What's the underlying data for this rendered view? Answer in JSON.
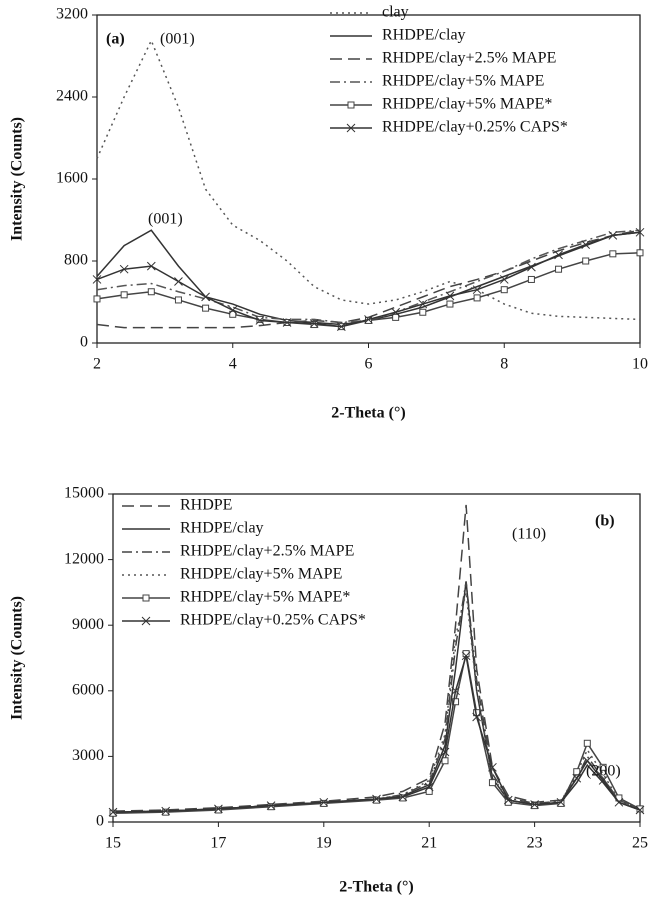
{
  "chart_data": [
    {
      "type": "line",
      "panel": "(a)",
      "annotations": [
        "(001)",
        "(001)"
      ],
      "xlabel": "2-Theta (°)",
      "ylabel": "Intensity (Counts)",
      "x": [
        2,
        2.4,
        2.8,
        3.2,
        3.6,
        4,
        4.4,
        4.8,
        5.2,
        5.6,
        6,
        6.4,
        6.8,
        7.2,
        7.6,
        8,
        8.4,
        8.8,
        9.2,
        9.6,
        10
      ],
      "xlim": [
        2,
        10
      ],
      "xticks": [
        2,
        4,
        6,
        8,
        10
      ],
      "ylim": [
        0,
        3200
      ],
      "yticks": [
        0,
        800,
        1600,
        2400,
        3200
      ],
      "grid": false,
      "legend": "upper-right",
      "series": [
        {
          "name": "clay",
          "color": "#555555",
          "dash": "dotted",
          "marker": "none",
          "values": [
            1800,
            2400,
            2950,
            2300,
            1500,
            1150,
            1000,
            800,
            550,
            420,
            380,
            420,
            500,
            600,
            520,
            380,
            290,
            260,
            250,
            240,
            230
          ]
        },
        {
          "name": "RHDPE/clay",
          "color": "#333333",
          "dash": "solid",
          "marker": "none",
          "values": [
            650,
            950,
            1100,
            750,
            450,
            380,
            280,
            220,
            200,
            180,
            220,
            280,
            350,
            450,
            550,
            650,
            750,
            850,
            950,
            1050,
            1080
          ]
        },
        {
          "name": "RHDPE/clay+2.5% MAPE",
          "color": "#444444",
          "dash": "longdash",
          "marker": "none",
          "values": [
            180,
            150,
            150,
            150,
            150,
            150,
            170,
            200,
            220,
            200,
            250,
            350,
            450,
            550,
            620,
            700,
            800,
            900,
            980,
            1050,
            1100
          ]
        },
        {
          "name": "RHDPE/clay+5% MAPE",
          "color": "#555555",
          "dash": "dashdot",
          "marker": "none",
          "values": [
            520,
            560,
            580,
            500,
            430,
            350,
            250,
            230,
            230,
            200,
            220,
            300,
            400,
            500,
            600,
            700,
            820,
            920,
            1000,
            1080,
            1100
          ]
        },
        {
          "name": "RHDPE/clay+5% MAPE*",
          "color": "#444444",
          "dash": "solid",
          "marker": "square",
          "values": [
            430,
            470,
            500,
            420,
            340,
            280,
            230,
            200,
            180,
            160,
            220,
            250,
            300,
            380,
            440,
            520,
            620,
            720,
            800,
            870,
            880
          ]
        },
        {
          "name": "RHDPE/clay+0.25% CAPS*",
          "color": "#333333",
          "dash": "solid",
          "marker": "x",
          "values": [
            620,
            720,
            750,
            600,
            450,
            320,
            220,
            200,
            190,
            160,
            230,
            300,
            380,
            460,
            520,
            620,
            740,
            860,
            960,
            1050,
            1080
          ]
        }
      ]
    },
    {
      "type": "line",
      "panel": "(b)",
      "annotations": [
        "(110)",
        "(200)"
      ],
      "xlabel": "2-Theta (°)",
      "ylabel": "Intensity (Counts)",
      "x": [
        15,
        16,
        17,
        18,
        19,
        20,
        20.5,
        21,
        21.3,
        21.5,
        21.7,
        21.9,
        22.2,
        22.5,
        23,
        23.5,
        23.8,
        24,
        24.3,
        24.6,
        25
      ],
      "xlim": [
        15,
        25
      ],
      "xticks": [
        15,
        17,
        19,
        21,
        23,
        25
      ],
      "ylim": [
        0,
        15000
      ],
      "yticks": [
        0,
        3000,
        6000,
        9000,
        12000,
        15000
      ],
      "grid": false,
      "legend": "upper-left",
      "series": [
        {
          "name": "RHDPE",
          "color": "#444444",
          "dash": "longdash",
          "marker": "none",
          "values": [
            500,
            550,
            650,
            800,
            950,
            1150,
            1400,
            2000,
            4500,
            9000,
            14500,
            7000,
            2500,
            1200,
            900,
            1000,
            2000,
            2800,
            2000,
            1000,
            600
          ]
        },
        {
          "name": "RHDPE/clay",
          "color": "#333333",
          "dash": "solid",
          "marker": "none",
          "values": [
            450,
            500,
            600,
            750,
            900,
            1050,
            1200,
            1700,
            3500,
            7000,
            11000,
            6000,
            2000,
            1000,
            800,
            900,
            1800,
            2600,
            1800,
            900,
            550
          ]
        },
        {
          "name": "RHDPE/clay+2.5% MAPE",
          "color": "#444444",
          "dash": "dashdot",
          "marker": "none",
          "values": [
            450,
            500,
            600,
            750,
            900,
            1050,
            1250,
            1800,
            3800,
            8000,
            11000,
            6500,
            2200,
            1100,
            850,
            950,
            2000,
            3000,
            2000,
            950,
            600
          ]
        },
        {
          "name": "RHDPE/clay+5% MAPE",
          "color": "#555555",
          "dash": "dotted",
          "marker": "none",
          "values": [
            450,
            500,
            600,
            750,
            900,
            1050,
            1250,
            1900,
            4000,
            8500,
            10500,
            6000,
            2100,
            1000,
            800,
            950,
            2200,
            3300,
            2200,
            1000,
            600
          ]
        },
        {
          "name": "RHDPE/clay+5% MAPE*",
          "color": "#444444",
          "dash": "solid",
          "marker": "square",
          "values": [
            400,
            450,
            550,
            700,
            850,
            1000,
            1100,
            1400,
            2800,
            5500,
            7700,
            5000,
            1800,
            900,
            750,
            850,
            2300,
            3600,
            2500,
            1100,
            600
          ]
        },
        {
          "name": "RHDPE/clay+0.25% CAPS*",
          "color": "#333333",
          "dash": "solid",
          "marker": "x",
          "values": [
            450,
            500,
            600,
            750,
            900,
            1050,
            1150,
            1600,
            3200,
            6000,
            7600,
            4800,
            2500,
            1000,
            800,
            900,
            2000,
            2800,
            1900,
            900,
            550
          ]
        }
      ]
    }
  ]
}
